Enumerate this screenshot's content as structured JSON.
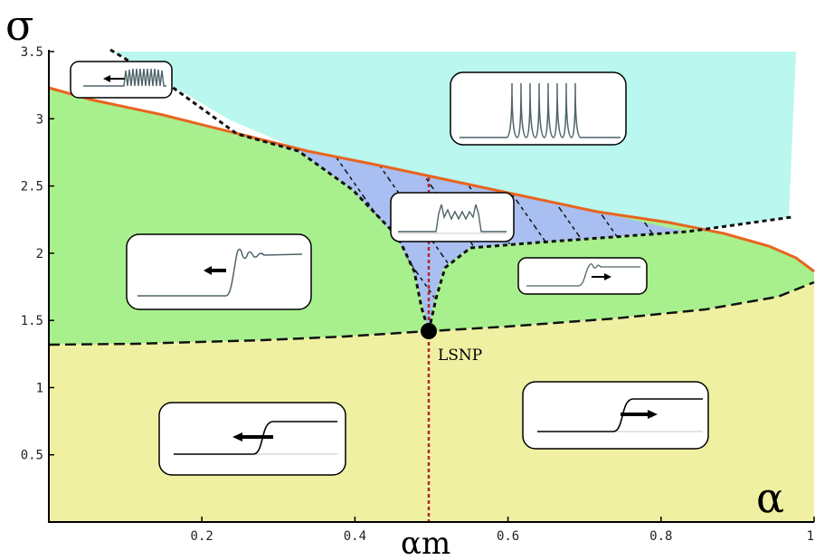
{
  "axes": {
    "x_symbol": "α",
    "y_symbol": "σ",
    "x_marker_label": "αm",
    "x_ticks": [
      "0.2",
      "0.4",
      "0.6",
      "0.8",
      "1"
    ],
    "y_ticks": [
      "0.5",
      "1",
      "1.5",
      "2",
      "2.5",
      "3",
      "3.5"
    ]
  },
  "annotations": {
    "lsnp": "LSNP"
  },
  "colors": {
    "cyan_region": "#b9f7ef",
    "green_region": "#a8f08e",
    "yellow_region": "#f0f0a2",
    "hatched_region": "#a9bff1",
    "boundary_curve": "#e8641f",
    "marker_line": "#b0282b",
    "inset_trace": "#4f6468"
  },
  "insets": [
    {
      "name": "oscillating-front-left-inset",
      "pattern": "oscillating-front",
      "direction": "left"
    },
    {
      "name": "pulse-train-inset",
      "pattern": "pulse-train",
      "direction": "none"
    },
    {
      "name": "modulated-plateau-inset",
      "pattern": "modulated-plateau",
      "direction": "none"
    },
    {
      "name": "damped-front-left-inset",
      "pattern": "damped-oscillation-front",
      "direction": "left"
    },
    {
      "name": "small-front-right-inset",
      "pattern": "damped-oscillation-front",
      "direction": "right"
    },
    {
      "name": "monotonic-front-left-inset",
      "pattern": "monotonic-front",
      "direction": "left"
    },
    {
      "name": "monotonic-front-right-inset",
      "pattern": "monotonic-front",
      "direction": "right"
    }
  ]
}
